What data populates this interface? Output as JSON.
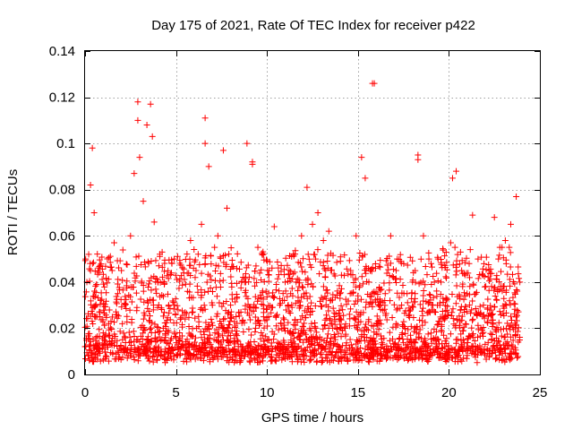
{
  "chart_data": {
    "type": "scatter",
    "title": "Day 175 of 2021, Rate Of TEC Index for receiver p422",
    "xlabel": "GPS time / hours",
    "ylabel": "ROTI / TECUs",
    "xlim": [
      0,
      25
    ],
    "ylim": [
      0,
      0.14
    ],
    "x_ticks": [
      0,
      5,
      10,
      15,
      20,
      25
    ],
    "x_tick_labels": [
      "0",
      "5",
      "10",
      "15",
      "20",
      "25"
    ],
    "y_ticks": [
      0,
      0.02,
      0.04,
      0.06,
      0.08,
      0.1,
      0.12,
      0.14
    ],
    "y_tick_labels": [
      "0",
      "0.02",
      "0.04",
      "0.06",
      "0.08",
      "0.1",
      "0.12",
      "0.14"
    ],
    "grid": true,
    "marker": "+",
    "series": [
      {
        "name": "ROTI",
        "color": "#ff0000",
        "x": [
          0.0,
          0.1,
          0.2,
          0.3,
          0.4,
          0.5,
          0.6,
          0.8,
          1.0,
          1.3,
          1.6,
          1.8,
          2.0,
          2.2,
          2.5,
          2.7,
          2.9,
          3.0,
          3.2,
          3.4,
          3.6,
          3.8,
          4.0,
          4.3,
          4.6,
          4.9,
          5.2,
          5.5,
          5.8,
          6.1,
          6.4,
          6.6,
          6.8,
          7.0,
          7.3,
          7.6,
          7.8,
          8.0,
          8.3,
          8.6,
          8.9,
          9.2,
          9.5,
          9.8,
          10.1,
          10.4,
          10.7,
          11.0,
          11.3,
          11.6,
          11.9,
          12.2,
          12.5,
          12.8,
          13.1,
          13.4,
          13.7,
          14.0,
          14.3,
          14.6,
          14.9,
          15.2,
          15.4,
          15.6,
          15.9,
          16.2,
          16.5,
          16.8,
          17.1,
          17.4,
          17.7,
          18.0,
          18.3,
          18.6,
          18.9,
          19.2,
          19.5,
          19.8,
          20.1,
          20.4,
          20.7,
          21.0,
          21.3,
          21.6,
          21.9,
          22.2,
          22.5,
          22.8,
          23.1,
          23.4,
          23.7,
          23.9,
          0.3,
          2.9,
          3.7,
          6.6,
          9.2,
          15.8,
          18.3,
          20.2
        ],
        "y": [
          0.012,
          0.04,
          0.052,
          0.045,
          0.098,
          0.07,
          0.03,
          0.025,
          0.018,
          0.022,
          0.057,
          0.035,
          0.045,
          0.03,
          0.06,
          0.087,
          0.118,
          0.094,
          0.075,
          0.108,
          0.117,
          0.066,
          0.04,
          0.02,
          0.03,
          0.05,
          0.015,
          0.024,
          0.058,
          0.045,
          0.065,
          0.111,
          0.09,
          0.03,
          0.06,
          0.097,
          0.072,
          0.03,
          0.025,
          0.04,
          0.1,
          0.092,
          0.055,
          0.03,
          0.025,
          0.064,
          0.03,
          0.04,
          0.035,
          0.04,
          0.06,
          0.081,
          0.065,
          0.07,
          0.058,
          0.062,
          0.025,
          0.035,
          0.02,
          0.045,
          0.06,
          0.094,
          0.085,
          0.04,
          0.126,
          0.03,
          0.035,
          0.06,
          0.045,
          0.03,
          0.035,
          0.04,
          0.095,
          0.06,
          0.05,
          0.04,
          0.03,
          0.025,
          0.057,
          0.088,
          0.045,
          0.035,
          0.069,
          0.05,
          0.03,
          0.045,
          0.068,
          0.055,
          0.058,
          0.065,
          0.077,
          0.04,
          0.082,
          0.11,
          0.103,
          0.1,
          0.091,
          0.126,
          0.093,
          0.085
        ]
      }
    ]
  }
}
